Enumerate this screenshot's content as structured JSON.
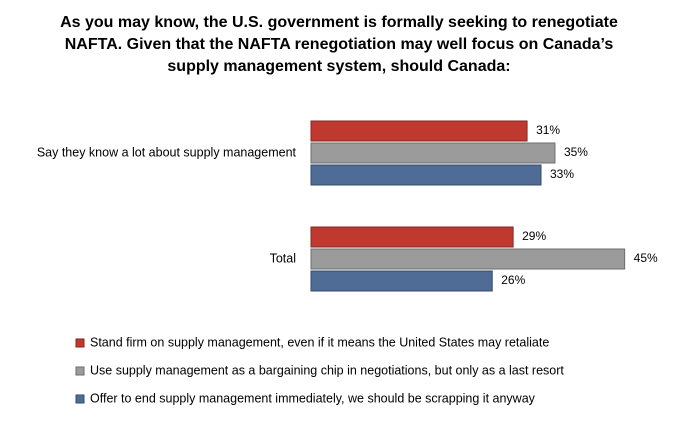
{
  "chart_data": {
    "type": "bar",
    "orientation": "horizontal",
    "title": "As you may know, the U.S. government is formally seeking to renegotiate NAFTA. Given that the NAFTA renegotiation may well focus on Canada’s supply management system, should Canada:",
    "categories": [
      "Say they know a lot about supply management",
      "Total"
    ],
    "series": [
      {
        "name": "Stand firm on supply management, even if it means the United States may retaliate",
        "color": "#c0392f",
        "values": [
          31,
          29
        ],
        "value_labels": [
          "31%",
          "29%"
        ]
      },
      {
        "name": "Use supply management as a bargaining chip in negotiations, but only as a last resort",
        "color": "#9b9b9b",
        "values": [
          35,
          45
        ],
        "value_labels": [
          "35%",
          "45%"
        ]
      },
      {
        "name": "Offer to end supply management immediately, we should be scrapping it anyway",
        "color": "#4e6c96",
        "values": [
          33,
          26
        ],
        "value_labels": [
          "33%",
          "26%"
        ]
      }
    ]
  }
}
